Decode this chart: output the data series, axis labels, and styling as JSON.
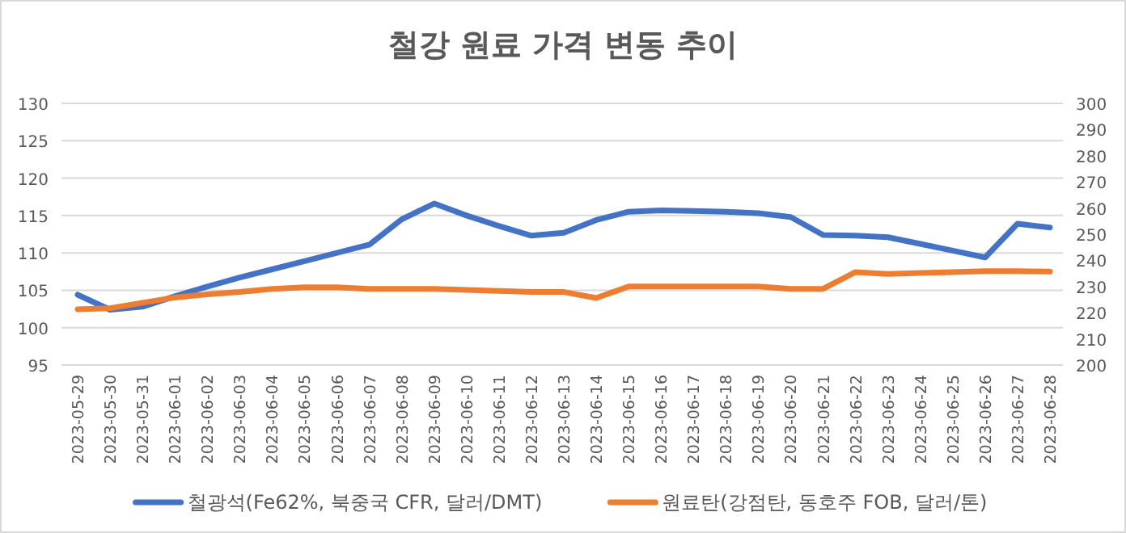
{
  "chart_data": {
    "type": "line",
    "title": "철강 원료 가격 변동 추이",
    "categories": [
      "2023-05-29",
      "2023-05-30",
      "2023-05-31",
      "2023-06-01",
      "2023-06-02",
      "2023-06-03",
      "2023-06-04",
      "2023-06-05",
      "2023-06-06",
      "2023-06-07",
      "2023-06-08",
      "2023-06-09",
      "2023-06-10",
      "2023-06-11",
      "2023-06-12",
      "2023-06-13",
      "2023-06-14",
      "2023-06-15",
      "2023-06-16",
      "2023-06-17",
      "2023-06-18",
      "2023-06-19",
      "2023-06-20",
      "2023-06-21",
      "2023-06-22",
      "2023-06-23",
      "2023-06-24",
      "2023-06-25",
      "2023-06-26",
      "2023-06-27",
      "2023-06-28"
    ],
    "series": [
      {
        "name": "철광석(Fe62%, 북중국 CFR, 달러/DMT)",
        "color": "#4472c4",
        "values": [
          104.4,
          102.4,
          102.8,
          104.2,
          105.5,
          106.7,
          107.8,
          108.9,
          110,
          111.1,
          114.5,
          116.6,
          115,
          113.6,
          112.3,
          112.7,
          114.4,
          115.5,
          115.7,
          115.6,
          115.5,
          115.3,
          114.8,
          112.4,
          112.3,
          112.1,
          111.2,
          110.3,
          109.4,
          113.9,
          113.4
        ]
      },
      {
        "name": "원료탄(강점탄, 동호주 FOB, 달러/톤)",
        "color": "#ed7d31",
        "axis": "y2",
        "values": [
          221.3,
          221.7,
          223.8,
          225.8,
          227,
          227.9,
          229.1,
          229.7,
          229.7,
          229.1,
          229.1,
          229.1,
          228.7,
          228.3,
          227.9,
          227.9,
          225.6,
          230,
          230,
          230,
          230,
          230,
          229.1,
          229.1,
          235.5,
          234.8,
          235.2,
          235.5,
          235.9,
          235.9,
          235.7
        ]
      }
    ],
    "ylim": [
      95,
      130
    ],
    "yticks": [
      95,
      100,
      105,
      110,
      115,
      120,
      125,
      130
    ],
    "y2lim": [
      200,
      300
    ],
    "y2ticks": [
      200,
      210,
      220,
      230,
      240,
      250,
      260,
      270,
      280,
      290,
      300
    ],
    "grid": "y",
    "legend": "bottom",
    "marker": "none",
    "line_style": "solid"
  }
}
